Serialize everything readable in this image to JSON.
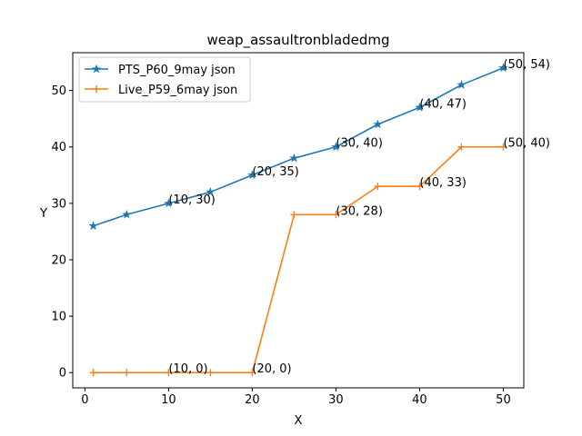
{
  "chart_data": {
    "type": "line",
    "title": "weap_assaultronbladedmg",
    "xlabel": "X",
    "ylabel": "Y",
    "xlim": [
      -1.45,
      52.45
    ],
    "ylim": [
      -2.7,
      56.7
    ],
    "xticks": [
      0,
      10,
      20,
      30,
      40,
      50
    ],
    "yticks": [
      0,
      10,
      20,
      30,
      40,
      50
    ],
    "legend_position": "top-left",
    "grid": false,
    "series": [
      {
        "name": "PTS_P60_9may json",
        "color": "#1f77b4",
        "marker": "star",
        "x": [
          1,
          5,
          10,
          15,
          20,
          25,
          30,
          35,
          40,
          45,
          50
        ],
        "y": [
          26,
          28,
          30,
          32,
          35,
          38,
          40,
          44,
          47,
          51,
          54
        ]
      },
      {
        "name": "Live_P59_6may json",
        "color": "#ff7f0e",
        "marker": "plus",
        "x": [
          1,
          5,
          10,
          15,
          20,
          25,
          30,
          35,
          40,
          45,
          50
        ],
        "y": [
          0,
          0,
          0,
          0,
          0,
          28,
          28,
          33,
          33,
          40,
          40
        ]
      }
    ],
    "annotations": [
      {
        "label": "(10, 30)",
        "x": 10,
        "y": 30
      },
      {
        "label": "(20, 35)",
        "x": 20,
        "y": 35
      },
      {
        "label": "(30, 40)",
        "x": 30,
        "y": 40
      },
      {
        "label": "(40, 47)",
        "x": 40,
        "y": 47
      },
      {
        "label": "(50, 54)",
        "x": 50,
        "y": 54
      },
      {
        "label": "(10, 0)",
        "x": 10,
        "y": 0
      },
      {
        "label": "(20, 0)",
        "x": 20,
        "y": 0
      },
      {
        "label": "(30, 28)",
        "x": 30,
        "y": 28
      },
      {
        "label": "(40, 33)",
        "x": 40,
        "y": 33
      },
      {
        "label": "(50, 40)",
        "x": 50,
        "y": 40
      }
    ]
  }
}
